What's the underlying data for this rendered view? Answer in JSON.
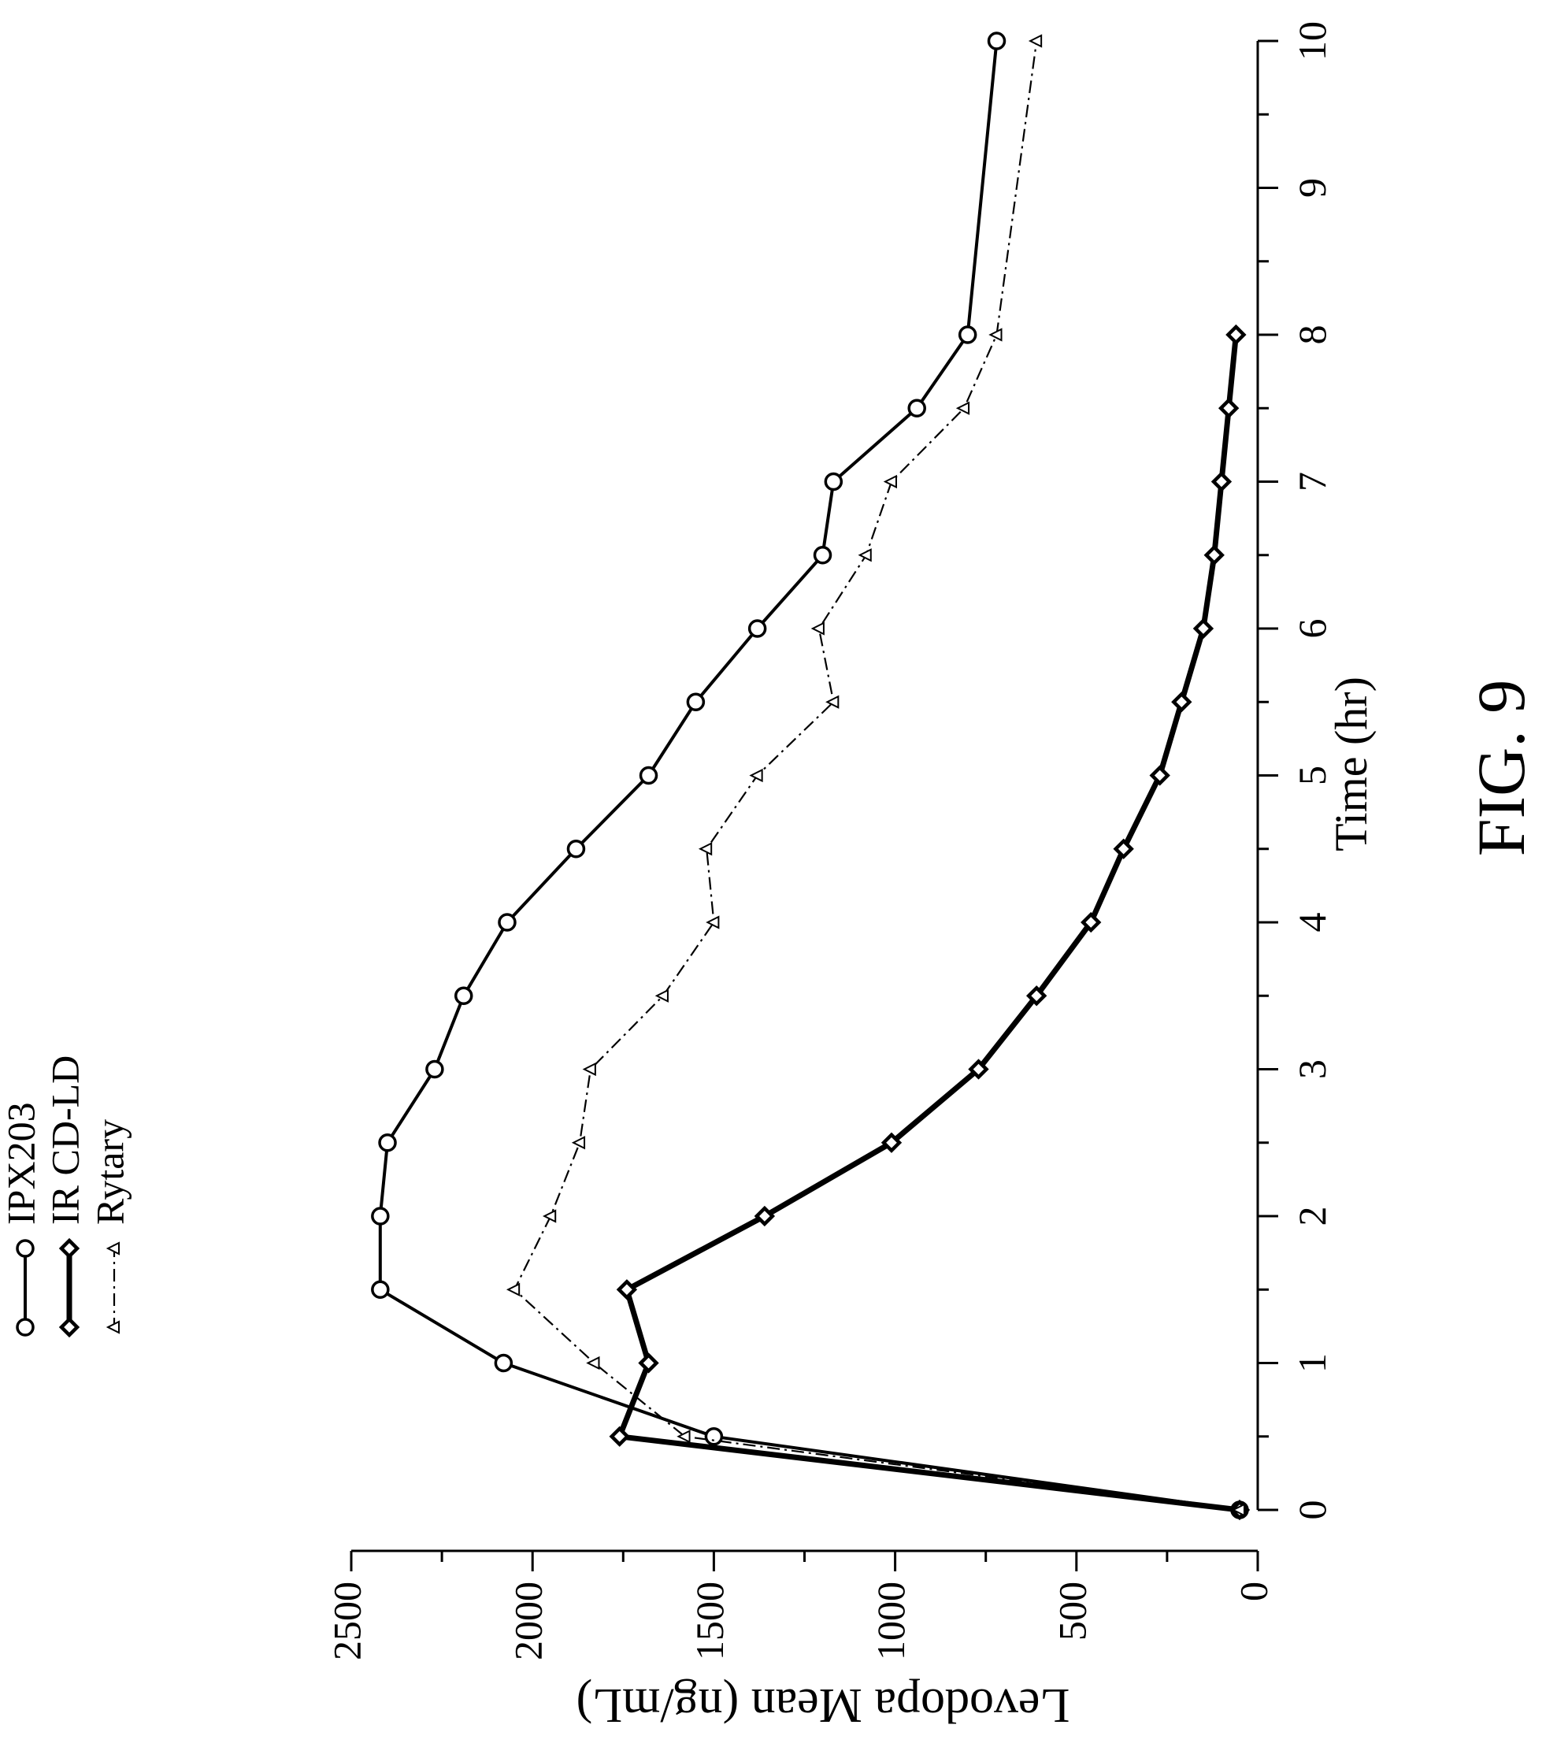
{
  "figure_label": "FIG. 9",
  "chart_data": {
    "type": "line",
    "orientation": "rotated 90 degrees clockwise (x axis along the right edge, y axis along the bottom edge)",
    "xlabel": "Time (hr)",
    "ylabel": "Levodopa Mean (ng/mL)",
    "xlim": [
      0,
      10
    ],
    "ylim": [
      0,
      2500
    ],
    "x_ticks": [
      "0",
      "1",
      "2",
      "3",
      "4",
      "5",
      "6",
      "7",
      "8",
      "9",
      "10"
    ],
    "y_ticks": [
      "0",
      "500",
      "1000",
      "1500",
      "2000",
      "2500"
    ],
    "grid": false,
    "legend_position": "top-left",
    "series": [
      {
        "name": "IPX203",
        "marker": "circle",
        "line": "solid",
        "x": [
          0,
          0.5,
          1,
          1.5,
          2,
          2.5,
          3,
          3.5,
          4,
          4.5,
          5,
          5.5,
          6,
          6.5,
          7,
          7.5,
          8,
          10
        ],
        "y": [
          50,
          1500,
          2080,
          2420,
          2420,
          2400,
          2270,
          2190,
          2070,
          1880,
          1680,
          1550,
          1380,
          1200,
          1170,
          940,
          800,
          720
        ]
      },
      {
        "name": "IR CD-LD",
        "marker": "diamond",
        "line": "solid-bold",
        "x": [
          0,
          0.5,
          1,
          1.5,
          2,
          2.5,
          3,
          3.5,
          4,
          4.5,
          5,
          5.5,
          6,
          6.5,
          7,
          7.5,
          8
        ],
        "y": [
          50,
          1760,
          1680,
          1740,
          1360,
          1010,
          770,
          610,
          460,
          370,
          270,
          210,
          150,
          120,
          100,
          80,
          60
        ]
      },
      {
        "name": "Rytary",
        "marker": "triangle",
        "line": "dash-dot",
        "x": [
          0,
          0.5,
          1,
          1.5,
          2,
          2.5,
          3,
          3.5,
          4,
          4.5,
          5,
          5.5,
          6,
          6.5,
          7,
          7.5,
          8,
          10
        ],
        "y": [
          50,
          1580,
          1830,
          2050,
          1950,
          1870,
          1840,
          1640,
          1500,
          1520,
          1380,
          1170,
          1210,
          1080,
          1010,
          810,
          720,
          610
        ]
      }
    ]
  }
}
